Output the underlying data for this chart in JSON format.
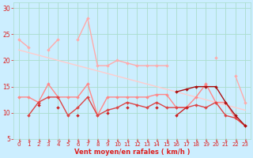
{
  "x": [
    0,
    1,
    2,
    3,
    4,
    5,
    6,
    7,
    8,
    9,
    10,
    11,
    12,
    13,
    14,
    15,
    16,
    17,
    18,
    19,
    20,
    21,
    22,
    23
  ],
  "series": [
    {
      "color": "#ffaaaa",
      "lw": 1.0,
      "marker": "D",
      "ms": 2.0,
      "values": [
        24,
        22.5,
        null,
        22,
        24,
        null,
        24,
        28,
        19,
        19,
        20,
        19.5,
        19,
        19,
        19,
        19,
        null,
        null,
        null,
        null,
        20.5,
        null,
        17,
        12
      ]
    },
    {
      "color": "#ffcccc",
      "lw": 1.0,
      "marker": null,
      "ms": 0,
      "values": [
        22,
        21.5,
        21,
        20.5,
        20,
        19.5,
        19,
        18.5,
        18,
        17.5,
        17,
        16.5,
        16,
        15.5,
        15,
        14.5,
        14,
        13.5,
        13,
        12.5,
        12,
        11.5,
        11,
        10.5
      ]
    },
    {
      "color": "#ff8888",
      "lw": 1.0,
      "marker": "D",
      "ms": 2.0,
      "values": [
        13,
        13,
        12,
        15.5,
        13,
        13,
        13,
        15.5,
        9.5,
        13,
        13,
        13,
        13,
        13,
        13.5,
        13.5,
        11,
        11,
        13,
        15.5,
        12,
        12,
        9,
        7.5
      ]
    },
    {
      "color": "#dd4444",
      "lw": 1.0,
      "marker": "D",
      "ms": 2.0,
      "values": [
        null,
        9.5,
        12,
        13,
        13,
        9.5,
        11,
        13,
        9.5,
        10.5,
        11,
        12,
        11.5,
        11,
        12,
        11,
        11,
        11,
        11.5,
        11,
        12,
        9.5,
        9,
        7.5
      ]
    },
    {
      "color": "#cc2222",
      "lw": 1.0,
      "marker": "D",
      "ms": 2.0,
      "values": [
        null,
        null,
        11.5,
        null,
        11,
        null,
        9.5,
        null,
        null,
        10,
        null,
        11,
        null,
        null,
        11,
        null,
        9.5,
        11,
        null,
        null,
        null,
        null,
        null,
        null
      ]
    },
    {
      "color": "#aa1111",
      "lw": 1.0,
      "marker": "D",
      "ms": 2.0,
      "values": [
        null,
        null,
        null,
        null,
        null,
        null,
        null,
        null,
        null,
        null,
        null,
        null,
        null,
        null,
        null,
        null,
        14,
        14.5,
        15,
        15,
        15,
        12,
        9.5,
        7.5
      ]
    }
  ],
  "xlabel": "Vent moyen/en rafales ( km/h )",
  "xlim": [
    -0.5,
    23.5
  ],
  "ylim": [
    5,
    31
  ],
  "yticks": [
    5,
    10,
    15,
    20,
    25,
    30
  ],
  "xticks": [
    0,
    1,
    2,
    3,
    4,
    5,
    6,
    7,
    8,
    9,
    10,
    11,
    12,
    13,
    14,
    15,
    16,
    17,
    18,
    19,
    20,
    21,
    22,
    23
  ],
  "bg_color": "#cceeff",
  "grid_color": "#aaddcc",
  "tick_color": "#dd2222",
  "label_color": "#dd2222",
  "arrow_char": "↘",
  "arrow_color": "#dd3333"
}
